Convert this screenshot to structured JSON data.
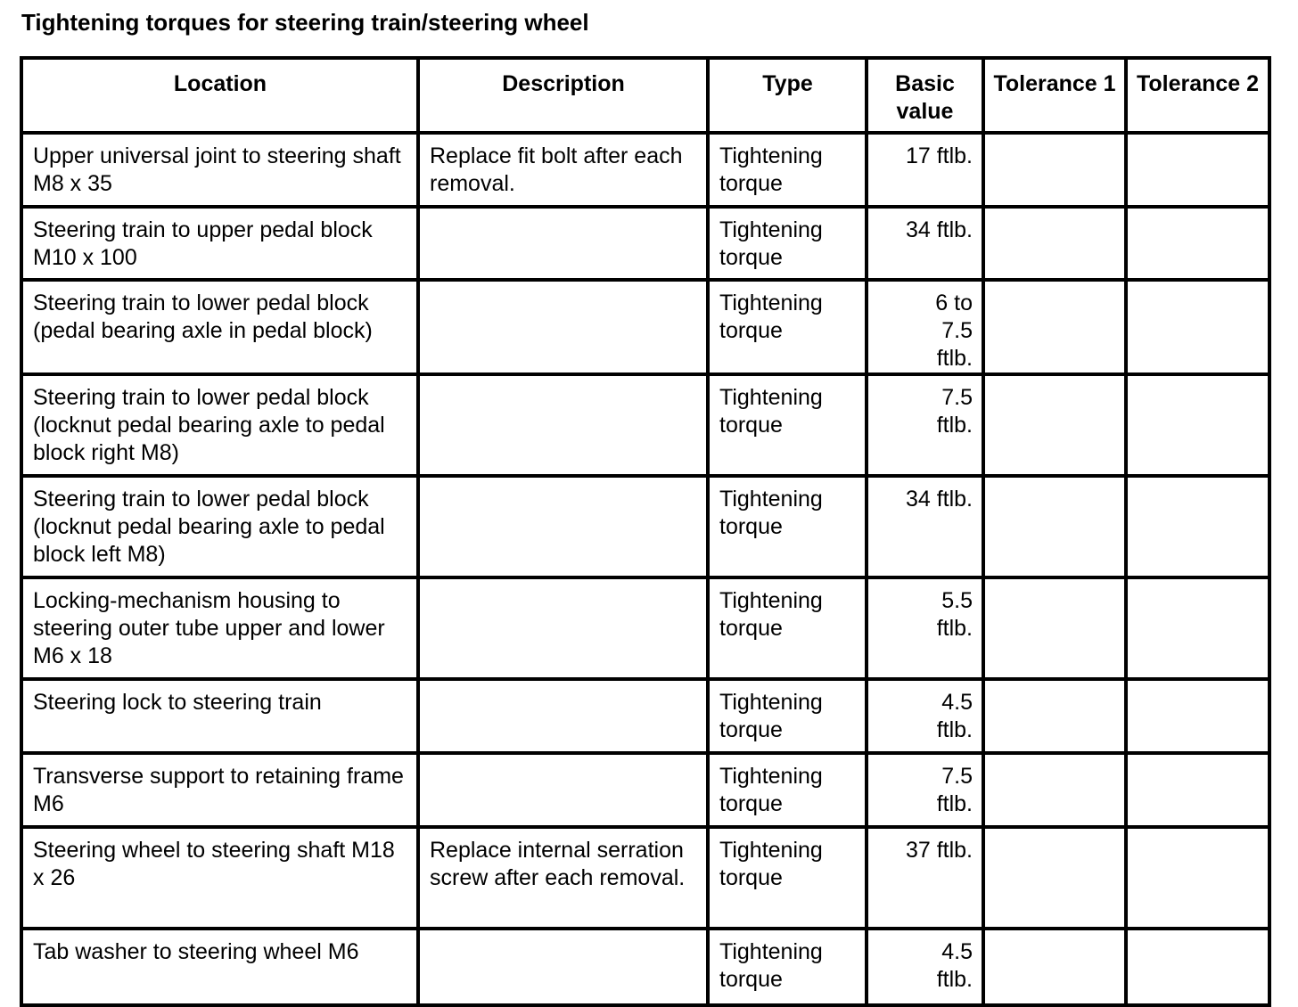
{
  "title": "Tightening torques for steering train/steering wheel",
  "table": {
    "headers": [
      "Location",
      "Description",
      "Type",
      "Basic value",
      "Tolerance 1",
      "Tolerance 2"
    ],
    "rows": [
      [
        "Upper universal joint to steering shaft M8 x 35",
        "Replace fit bolt after each removal.",
        "Tightening torque",
        "17 ftlb.",
        "",
        ""
      ],
      [
        "Steering train to upper pedal block M10 x 100",
        "",
        "Tightening torque",
        "34 ftlb.",
        "",
        ""
      ],
      [
        "Steering train to lower pedal block (pedal bearing axle in pedal block)",
        "",
        "Tightening torque",
        "6 to 7.5 ftlb.",
        "",
        ""
      ],
      [
        "Steering train to lower pedal block (locknut pedal bearing axle to pedal block right M8)",
        "",
        "Tightening torque",
        "7.5 ftlb.",
        "",
        ""
      ],
      [
        "Steering train to lower pedal block (locknut pedal bearing axle to pedal block left M8)",
        "",
        "Tightening torque",
        "34 ftlb.",
        "",
        ""
      ],
      [
        "Locking-mechanism housing to steering outer tube upper and lower M6 x 18",
        "",
        "Tightening torque",
        "5.5 ftlb.",
        "",
        ""
      ],
      [
        "Steering lock to steering train",
        "",
        "Tightening torque",
        "4.5 ftlb.",
        "",
        ""
      ],
      [
        "Transverse support to retaining frame M6",
        "",
        "Tightening torque",
        "7.5 ftlb.",
        "",
        ""
      ],
      [
        "Steering wheel to steering shaft M18 x 26",
        "Replace internal serration screw after each removal.",
        "Tightening torque",
        "37 ftlb.",
        "",
        ""
      ],
      [
        "Tab washer to steering wheel M6",
        "",
        "Tightening torque",
        "4.5 ftlb.",
        "",
        ""
      ]
    ]
  }
}
